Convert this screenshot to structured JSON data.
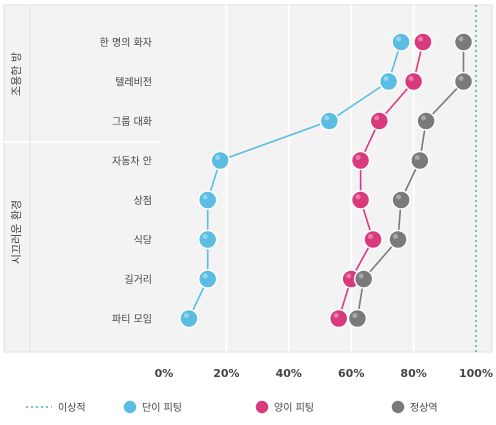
{
  "chart_data": {
    "type": "line",
    "orientation": "horizontal",
    "categories": [
      "한 명의 화자",
      "텔레비전",
      "그룹 대화",
      "자동차 안",
      "상점",
      "식당",
      "길거리",
      "파티 모임"
    ],
    "groups": [
      {
        "label": "조용한 방",
        "categories": [
          "한 명의 화자",
          "텔레비전"
        ]
      },
      {
        "label": "시끄러운 환경",
        "categories": [
          "자동차 안",
          "상점",
          "식당",
          "길거리",
          "파티 모임"
        ]
      }
    ],
    "x_ticks": [
      "0%",
      "20%",
      "40%",
      "60%",
      "80%",
      "100%"
    ],
    "xlim": [
      0,
      100
    ],
    "grid": true,
    "series": [
      {
        "name": "단이 피팅",
        "color": "#5bbde3",
        "values": [
          76,
          72,
          53,
          18,
          14,
          14,
          14,
          8
        ]
      },
      {
        "name": "양이 피팅",
        "color": "#d93a7e",
        "values": [
          83,
          80,
          69,
          63,
          63,
          67,
          60,
          56
        ]
      },
      {
        "name": "정상역",
        "color": "#7a7a7a",
        "values": [
          96,
          96,
          84,
          82,
          76,
          75,
          64,
          62
        ]
      }
    ],
    "reference_line": {
      "name": "이상적",
      "value": 100,
      "color": "#3fb8a6"
    },
    "legend_position": "bottom"
  }
}
